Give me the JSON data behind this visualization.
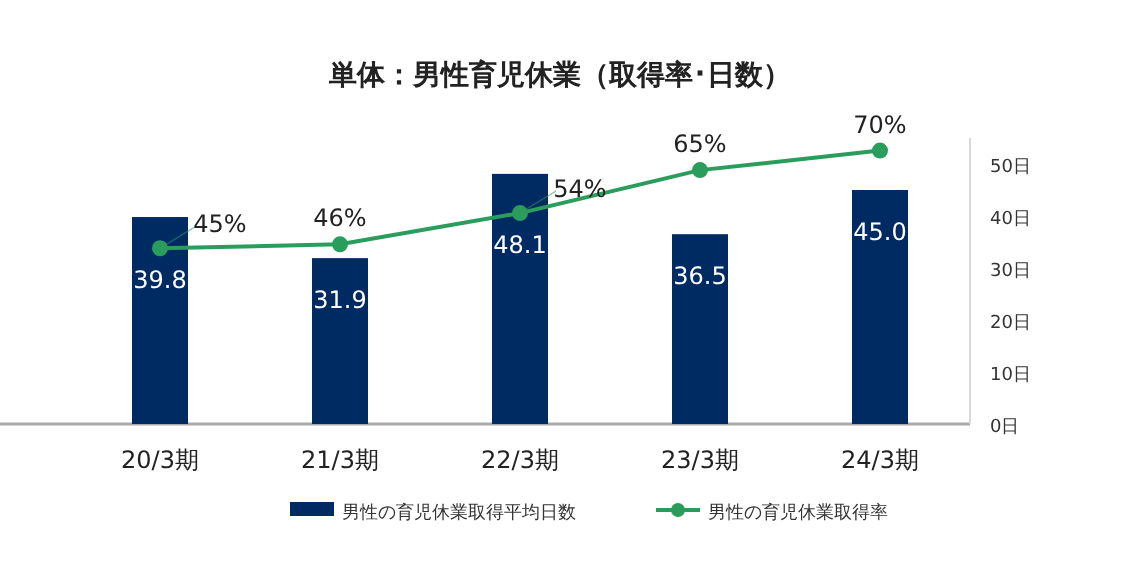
{
  "chart_data": {
    "type": "bar",
    "title": "単体：男性育児休業（取得率･日数）",
    "categories": [
      "20/3期",
      "21/3期",
      "22/3期",
      "23/3期",
      "24/3期"
    ],
    "series": [
      {
        "name": "男性の育児休業取得平均日数",
        "color": "#002b62",
        "values": [
          39.8,
          31.9,
          48.1,
          36.5,
          45.0
        ],
        "value_labels": [
          "39.8",
          "31.9",
          "48.1",
          "36.5",
          "45.0"
        ]
      },
      {
        "name": "男性の育児休業取得率",
        "type": "line",
        "axis": "y2",
        "color": "#2a9d5c",
        "marker": "circle",
        "values": [
          45,
          46,
          54,
          65,
          70
        ],
        "value_labels": [
          "45%",
          "46%",
          "54%",
          "65%",
          "70%"
        ]
      }
    ],
    "ylim": [
      0,
      55
    ],
    "yticks": [
      {
        "value": 0,
        "label": "0日"
      },
      {
        "value": 10,
        "label": "10日"
      },
      {
        "value": 20,
        "label": "20日"
      },
      {
        "value": 30,
        "label": "30日"
      },
      {
        "value": 40,
        "label": "40日"
      },
      {
        "value": 50,
        "label": "50日"
      }
    ],
    "legend": "bottom",
    "grid": false
  }
}
